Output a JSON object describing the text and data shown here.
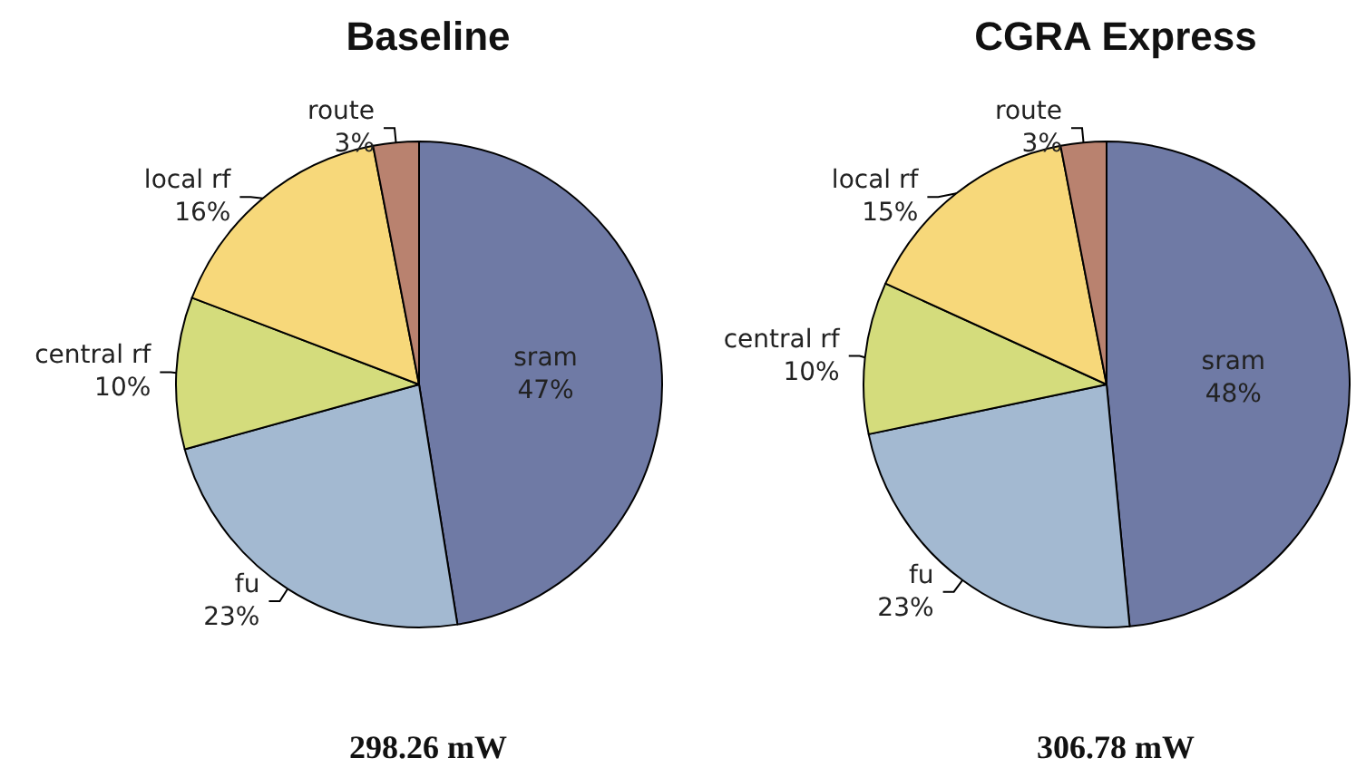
{
  "chart_data": [
    {
      "type": "pie",
      "title": "Baseline",
      "categories": [
        "sram",
        "fu",
        "central rf",
        "local rf",
        "route"
      ],
      "values": [
        47,
        23,
        10,
        16,
        3
      ],
      "value_labels": [
        "47%",
        "23%",
        "10%",
        "16%",
        "3%"
      ],
      "colors": [
        "#6f7aa5",
        "#a3b9d1",
        "#d4dc7c",
        "#f7d87a",
        "#b9826f"
      ],
      "legend": false,
      "annotations": [
        "298.26 mW"
      ]
    },
    {
      "type": "pie",
      "title": "CGRA Express",
      "categories": [
        "sram",
        "fu",
        "central rf",
        "local rf",
        "route"
      ],
      "values": [
        48,
        23,
        10,
        15,
        3
      ],
      "value_labels": [
        "48%",
        "23%",
        "10%",
        "15%",
        "3%"
      ],
      "colors": [
        "#6f7aa5",
        "#a3b9d1",
        "#d4dc7c",
        "#f7d87a",
        "#b9826f"
      ],
      "legend": false,
      "annotations": [
        "306.78 mW"
      ]
    }
  ]
}
